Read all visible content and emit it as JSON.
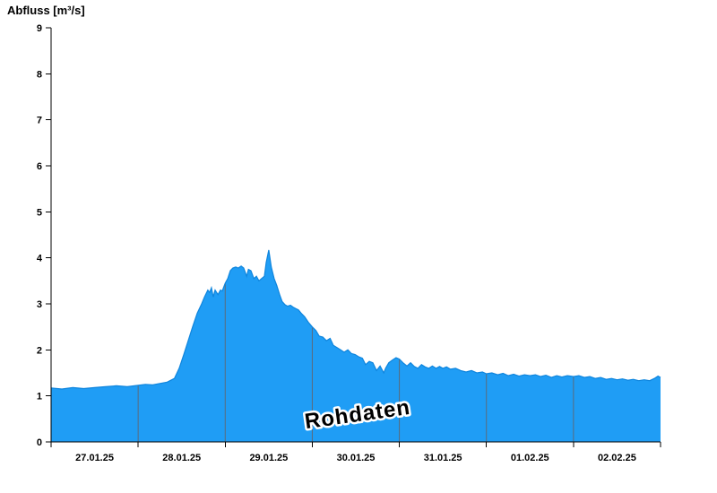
{
  "chart_data": {
    "type": "area",
    "title": "Abfluss [m³/s]",
    "watermark": "Rohdaten",
    "legend": "none",
    "grid": "vertical-day-boundaries-only",
    "ylim": [
      0,
      9
    ],
    "y_ticks": [
      "0",
      "1",
      "2",
      "3",
      "4",
      "5",
      "6",
      "7",
      "8",
      "9"
    ],
    "x_axis": {
      "start": "27.01.25 00:00",
      "end": "03.02.25 00:00",
      "range_hours": [
        0,
        168
      ],
      "day_boundaries_hours": [
        0,
        24,
        48,
        72,
        96,
        120,
        144,
        168
      ],
      "label_positions_hours": [
        12,
        36,
        60,
        84,
        108,
        132,
        156
      ],
      "labels": [
        "27.01.25",
        "28.01.25",
        "29.01.25",
        "30.01.25",
        "31.01.25",
        "01.02.25",
        "02.02.25"
      ]
    },
    "colors": {
      "fill": "#1f9df5",
      "line": "#0f85dd",
      "day_grid": "#5a6b7c",
      "axis": "#000000",
      "watermark": "#a0a0a0",
      "watermark_halo": "#ffffff"
    },
    "series": [
      {
        "name": "Abfluss",
        "unit": "m³/s",
        "t_hours": [
          0,
          3,
          6,
          9,
          12,
          15,
          18,
          21,
          24,
          26,
          28,
          30,
          32,
          34,
          35.3,
          36.6,
          37.8,
          39,
          40.3,
          41.5,
          42.3,
          43.2,
          43.7,
          44.2,
          44.7,
          45.2,
          46,
          46.7,
          47.2,
          48,
          48.7,
          49.4,
          50.1,
          50.9,
          51.6,
          52.4,
          53.1,
          53.9,
          54.4,
          55.1,
          55.9,
          56.6,
          57.3,
          58,
          58.8,
          59.3,
          60,
          60.7,
          61.5,
          62.2,
          63,
          63.7,
          64.5,
          65.2,
          66,
          66.7,
          67.4,
          68.2,
          68.9,
          69.9,
          70.9,
          72,
          73,
          73.9,
          74.9,
          75.9,
          76.9,
          77.8,
          78.8,
          79.8,
          80.8,
          81.8,
          82.8,
          83.8,
          84.8,
          85.8,
          86.7,
          87.7,
          88.7,
          89.7,
          90.7,
          91.7,
          92.2,
          93.1,
          94.1,
          95.1,
          96,
          97,
          98.1,
          99.1,
          100.1,
          101.1,
          102.1,
          103.1,
          104.1,
          105.1,
          106.1,
          107.1,
          108,
          109,
          110.1,
          111.5,
          112.9,
          114.4,
          115.9,
          117.4,
          118.9,
          120,
          121.5,
          123.1,
          124.6,
          126,
          127.5,
          129,
          130.5,
          132,
          133.5,
          134.9,
          136.4,
          137.9,
          139.4,
          140.8,
          142.3,
          144,
          145.5,
          147,
          148.5,
          150,
          151.5,
          153,
          154.5,
          156,
          157.5,
          159,
          160.5,
          162,
          163.5,
          165,
          166.3,
          167.3,
          168
        ],
        "values": [
          1.17,
          1.15,
          1.18,
          1.16,
          1.18,
          1.2,
          1.22,
          1.2,
          1.23,
          1.25,
          1.24,
          1.27,
          1.3,
          1.38,
          1.6,
          1.9,
          2.2,
          2.5,
          2.8,
          3.0,
          3.15,
          3.3,
          3.25,
          3.35,
          3.15,
          3.3,
          3.2,
          3.3,
          3.28,
          3.45,
          3.55,
          3.72,
          3.78,
          3.8,
          3.78,
          3.82,
          3.78,
          3.6,
          3.75,
          3.72,
          3.55,
          3.6,
          3.5,
          3.55,
          3.6,
          3.9,
          4.17,
          3.8,
          3.55,
          3.4,
          3.2,
          3.05,
          2.98,
          2.95,
          2.97,
          2.93,
          2.9,
          2.87,
          2.8,
          2.72,
          2.6,
          2.5,
          2.42,
          2.3,
          2.28,
          2.2,
          2.25,
          2.1,
          2.05,
          2.0,
          1.95,
          2.0,
          1.92,
          1.9,
          1.85,
          1.82,
          1.68,
          1.75,
          1.72,
          1.55,
          1.65,
          1.5,
          1.6,
          1.72,
          1.78,
          1.83,
          1.8,
          1.72,
          1.65,
          1.72,
          1.64,
          1.6,
          1.68,
          1.63,
          1.6,
          1.65,
          1.6,
          1.64,
          1.6,
          1.63,
          1.58,
          1.6,
          1.55,
          1.52,
          1.55,
          1.5,
          1.52,
          1.48,
          1.5,
          1.46,
          1.49,
          1.44,
          1.47,
          1.43,
          1.46,
          1.44,
          1.46,
          1.42,
          1.45,
          1.4,
          1.44,
          1.41,
          1.44,
          1.42,
          1.44,
          1.4,
          1.42,
          1.38,
          1.4,
          1.36,
          1.38,
          1.35,
          1.37,
          1.34,
          1.36,
          1.33,
          1.35,
          1.33,
          1.38,
          1.43,
          1.4
        ]
      }
    ]
  }
}
